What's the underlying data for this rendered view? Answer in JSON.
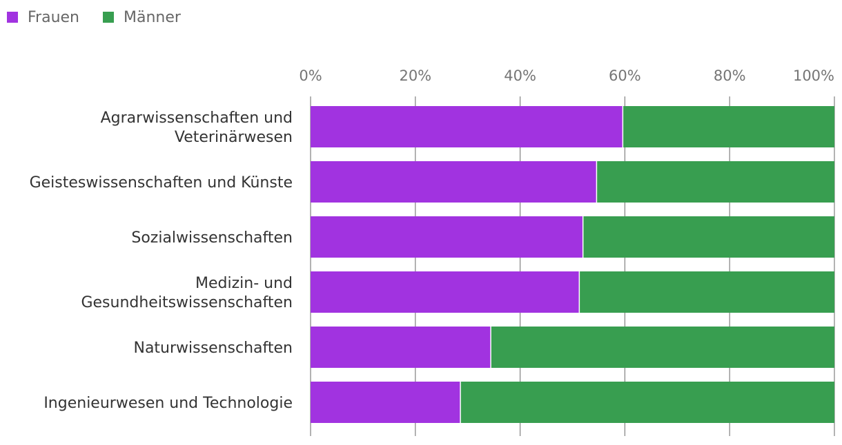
{
  "chart_data": {
    "type": "bar",
    "orientation": "horizontal",
    "stacked": true,
    "title": "",
    "xlabel": "",
    "ylabel": "",
    "xlim": [
      0,
      100
    ],
    "x_ticks": [
      "0%",
      "20%",
      "40%",
      "60%",
      "80%",
      "100%"
    ],
    "grid": true,
    "legend_position": "top-left",
    "categories": [
      [
        "Agrarwissenschaften und",
        "Veterinärwesen"
      ],
      [
        "Geisteswissenschaften und Künste"
      ],
      [
        "Sozialwissenschaften"
      ],
      [
        "Medizin- und",
        "Gesundheitswissenschaften"
      ],
      [
        "Naturwissenschaften"
      ],
      [
        "Ingenieurwesen und Technologie"
      ]
    ],
    "series": [
      {
        "name": "Frauen",
        "color": "#a133e0",
        "values": [
          59.6,
          54.6,
          52.0,
          51.3,
          34.4,
          28.6
        ]
      },
      {
        "name": "Männer",
        "color": "#389e50",
        "values": [
          40.4,
          45.4,
          48.0,
          48.7,
          65.6,
          71.4
        ]
      }
    ]
  }
}
